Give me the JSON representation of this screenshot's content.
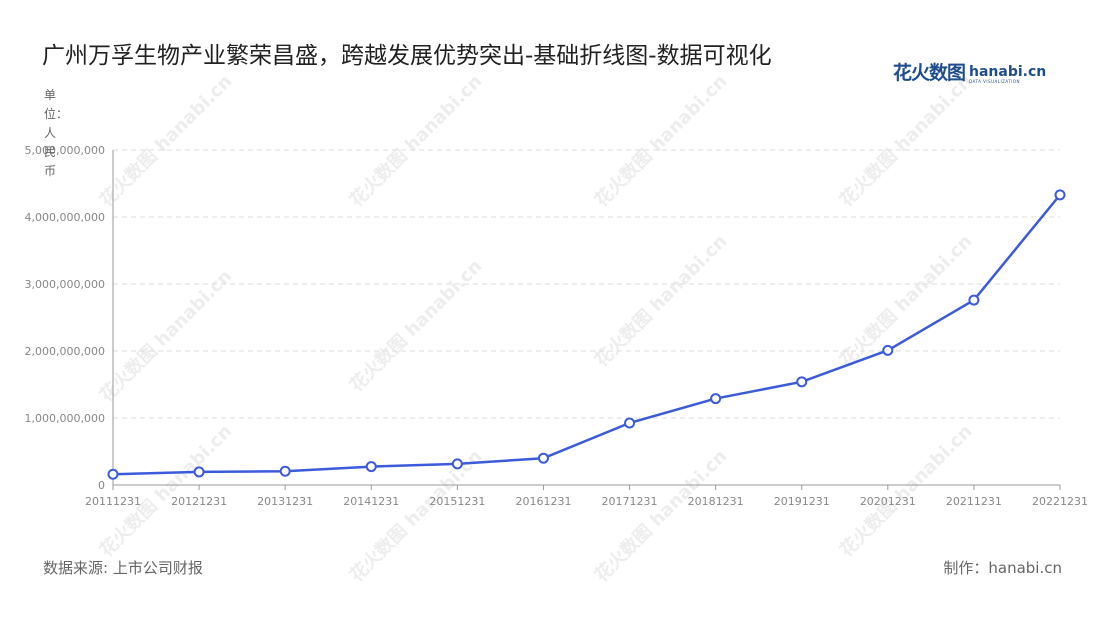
{
  "title": "广州万孚生物产业繁荣昌盛，跨越发展优势突出-基础折线图-数据可视化",
  "logo": {
    "cn": "花火数图",
    "en": "hanabi.cn",
    "sub": "DATA VISUALIZATION"
  },
  "watermark": "花火数图 hanabi.cn",
  "footer": {
    "source": "数据来源: 上市公司财报",
    "credit": "制作：hanabi.cn"
  },
  "colors": {
    "line": "#3b5bdb",
    "grid": "#dddddd",
    "axis": "#999999",
    "text": "#222222"
  },
  "chart_data": {
    "type": "line",
    "ylabel": "单位：人民币",
    "ylim": [
      0,
      5000000000
    ],
    "yticks": [
      "0",
      "1,000,000,000",
      "2,000,000,000",
      "3,000,000,000",
      "4,000,000,000",
      "5,000,000,000"
    ],
    "grid": true,
    "categories": [
      "20111231",
      "20121231",
      "20131231",
      "20141231",
      "20151231",
      "20161231",
      "20171231",
      "20181231",
      "20191231",
      "20201231",
      "20211231",
      "20221231"
    ],
    "series": [
      {
        "values": [
          160000000,
          195000000,
          205000000,
          275000000,
          315000000,
          400000000,
          925000000,
          1290000000,
          1540000000,
          2010000000,
          2760000000,
          4330000000
        ]
      }
    ]
  }
}
